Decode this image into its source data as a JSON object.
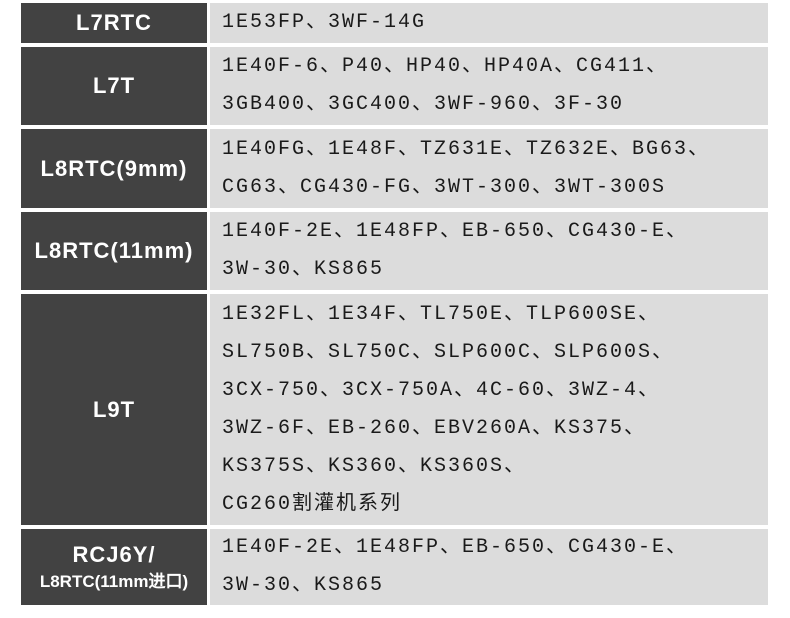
{
  "colors": {
    "header_bg": "#424242",
    "header_text": "#ffffff",
    "cell_bg": "#dcdcdc",
    "cell_text": "#1a1a1a",
    "page_bg": "#ffffff"
  },
  "table": {
    "description": "spark plug model to compatible engine/machine model cross-reference",
    "rows": [
      {
        "plug": [
          "L7RTC"
        ],
        "models": [
          "1E53FP、3WF-14G"
        ]
      },
      {
        "plug": [
          "L7T"
        ],
        "models": [
          "1E40F-6、P40、HP40、HP40A、CG411、",
          "3GB400、3GC400、3WF-960、3F-30"
        ]
      },
      {
        "plug": [
          "L8RTC(9mm)"
        ],
        "models": [
          "1E40FG、1E48F、TZ631E、TZ632E、BG63、",
          "CG63、CG430-FG、3WT-300、3WT-300S"
        ]
      },
      {
        "plug": [
          "L8RTC(11mm)"
        ],
        "models": [
          "1E40F-2E、1E48FP、EB-650、CG430-E、",
          "3W-30、KS865"
        ]
      },
      {
        "plug": [
          "L9T"
        ],
        "models": [
          "1E32FL、1E34F、TL750E、TLP600SE、",
          "SL750B、SL750C、SLP600C、SLP600S、",
          "3CX-750、3CX-750A、4C-60、3WZ-4、",
          "3WZ-6F、EB-260、EBV260A、KS375、",
          "KS375S、KS360、KS360S、",
          "CG260割灌机系列"
        ]
      },
      {
        "plug": [
          "RCJ6Y/",
          "L8RTC(11mm进口)"
        ],
        "models": [
          "1E40F-2E、1E48FP、EB-650、CG430-E、",
          "3W-30、KS865"
        ]
      }
    ]
  }
}
